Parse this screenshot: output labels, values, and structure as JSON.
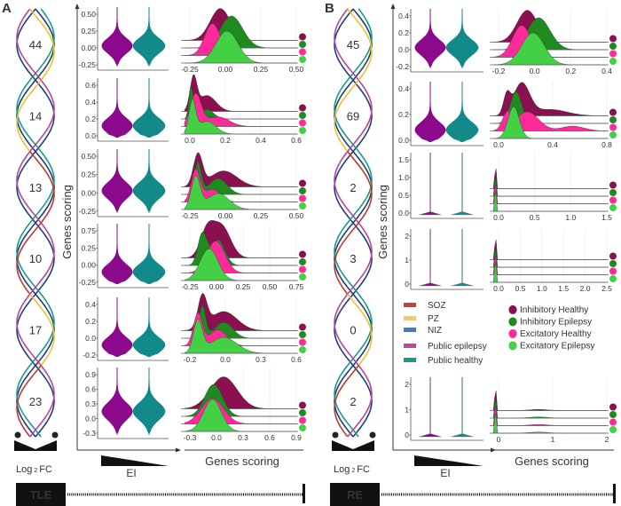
{
  "panels": [
    {
      "letter": "A",
      "condition": "TLE",
      "y_axis_label": "Genes scoring",
      "x_axis_label_violin": "EI",
      "x_axis_label_ridge": "Genes scoring",
      "fc_label": "Log",
      "fc_sub": "2",
      "fc_suffix": "FC",
      "minus": "−",
      "plus": "+",
      "rows": [
        {
          "count": "44",
          "violin_ticks": [
            "0.50",
            "0.25",
            "0.00",
            "-0.25"
          ],
          "ridge_ticks": [
            "-0.25",
            "0.00",
            "0.25",
            "0.50"
          ]
        },
        {
          "count": "14",
          "violin_ticks": [
            "0.6",
            "0.4",
            "0.2",
            "0.0"
          ],
          "ridge_ticks": [
            "0.0",
            "0.2",
            "0.4",
            "0.6"
          ]
        },
        {
          "count": "13",
          "violin_ticks": [
            "0.50",
            "0.25",
            "0.00",
            "-0.25"
          ],
          "ridge_ticks": [
            "-0.25",
            "0.00",
            "0.25",
            "0.50"
          ]
        },
        {
          "count": "10",
          "violin_ticks": [
            "0.75",
            "0.25",
            "0.00",
            "-0.25"
          ],
          "ridge_ticks": [
            "-0.25",
            "0.00",
            "0.25",
            "0.50",
            "0.75"
          ]
        },
        {
          "count": "17",
          "violin_ticks": [
            "0.4",
            "0.2",
            "0.0",
            "-0.2"
          ],
          "ridge_ticks": [
            "-0.2",
            "0.0",
            "0.3",
            "0.6"
          ]
        },
        {
          "count": "23",
          "violin_ticks": [
            "0.9",
            "0.6",
            "0.3",
            "0.0",
            "-0.3"
          ],
          "ridge_ticks": [
            "-0.3",
            "0.0",
            "0.3",
            "0.6",
            "0.9"
          ]
        }
      ]
    },
    {
      "letter": "B",
      "condition": "RE",
      "y_axis_label": "Genes scoring",
      "x_axis_label_violin": "EI",
      "x_axis_label_ridge": "Genes scoring",
      "fc_label": "Log",
      "fc_sub": "2",
      "fc_suffix": "FC",
      "minus": "−",
      "plus": "+",
      "rows": [
        {
          "count": "45",
          "violin_ticks": [
            "0.4",
            "0.2",
            "0.0",
            "-0.2"
          ],
          "ridge_ticks": [
            "-0.2",
            "0.0",
            "0.2",
            "0.4"
          ]
        },
        {
          "count": "69",
          "violin_ticks": [
            "0.4",
            "0.2",
            "0.0"
          ],
          "ridge_ticks": [
            "0.0",
            "0.4",
            "0.8"
          ]
        },
        {
          "count": "2",
          "violin_ticks": [
            "1.5",
            "1.0",
            "0.5",
            "0.0"
          ],
          "ridge_ticks": [
            "0.0",
            "0.5",
            "1.0",
            "1.5"
          ]
        },
        {
          "count": "3",
          "violin_ticks": [
            "2",
            "1",
            "0"
          ],
          "ridge_ticks": [
            "0.0",
            "0.5",
            "1.0",
            "1.5",
            "2.0",
            "2.5"
          ]
        },
        {
          "count": "0",
          "violin_ticks": [],
          "ridge_ticks": []
        },
        {
          "count": "2",
          "violin_ticks": [
            "2",
            "1",
            "0"
          ],
          "ridge_ticks": [
            "0",
            "1",
            "2"
          ]
        }
      ]
    }
  ],
  "legend_regions": [
    {
      "label": "SOZ",
      "color": "#C8403A"
    },
    {
      "label": "PZ",
      "color": "#EDC97E"
    },
    {
      "label": "NIZ",
      "color": "#3C7DC4"
    },
    {
      "label": "Public epilepsy",
      "color": "#B8489C"
    },
    {
      "label": "Public healthy",
      "color": "#1A9A8E"
    }
  ],
  "legend_cells": [
    {
      "label": "Inhibitory Healthy",
      "color": "#8B1050"
    },
    {
      "label": "Inhibitory Epilepsy",
      "color": "#1F8A1F"
    },
    {
      "label": "Excitatory Healthy",
      "color": "#FF2A9A"
    },
    {
      "label": "Excitatory Epilepsy",
      "color": "#44D044"
    }
  ],
  "violin_colors": {
    "epilepsy": "#8B0A8B",
    "healthy": "#128A8A"
  },
  "helix_colors": {
    "soz": "#C0392B",
    "pz": "#F0C030",
    "niz": "#1F3F7A",
    "public_epilepsy": "#B8449A",
    "public_healthy": "#1A9A8A"
  }
}
